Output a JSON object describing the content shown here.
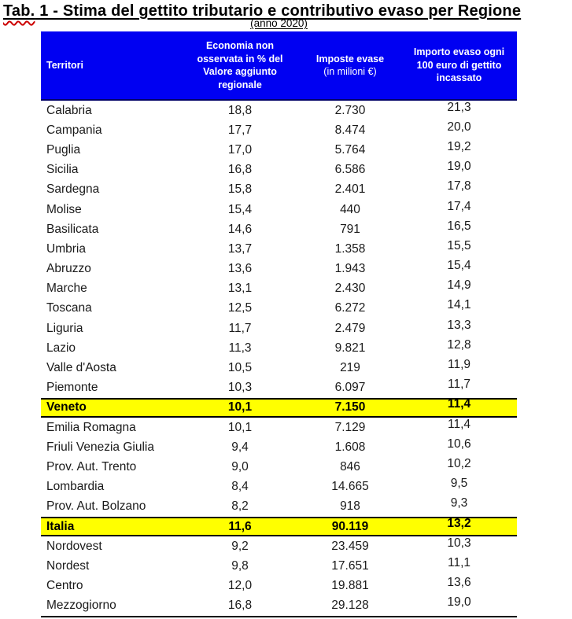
{
  "header": {
    "title_misspelled_word": "Tab.",
    "title_rest": " 1 - Stima del gettito tributario e contributivo evaso per Regione",
    "title_full": "Tab. 1 - Stima del gettito tributario e contributivo evaso per Regione",
    "subtitle": "(anno 2020)"
  },
  "colors": {
    "header_bg": "#0000F2",
    "header_bottom_edge": "#000066",
    "header_text": "#FFFFFF",
    "highlight_bg": "#FFFF00",
    "row_border": "#000000",
    "misspelling_underline": "#CC0000"
  },
  "chart_data": {
    "type": "table",
    "title": "Tab. 1 - Stima del gettito tributario e contributivo evaso per Regione",
    "subtitle": "(anno 2020)",
    "columns": [
      "Territori",
      "Economia non osservata in % del Valore aggiunto regionale",
      "Imposte evase (in milioni €)",
      "Importo evaso ogni 100 euro di gettito incassato"
    ],
    "column_headers": {
      "col1": "Territori",
      "col2": "Economia non osservata in % del Valore aggiunto regionale",
      "col3_line1": "Imposte evase",
      "col3_line2": "(in milioni €)",
      "col4": "Importo evaso ogni 100 euro di gettito incassato"
    },
    "rows": [
      {
        "territorio": "Calabria",
        "economia": "18,8",
        "imposte": "2.730",
        "importo": "21,3",
        "highlight": false
      },
      {
        "territorio": "Campania",
        "economia": "17,7",
        "imposte": "8.474",
        "importo": "20,0",
        "highlight": false
      },
      {
        "territorio": "Puglia",
        "economia": "17,0",
        "imposte": "5.764",
        "importo": "19,2",
        "highlight": false
      },
      {
        "territorio": "Sicilia",
        "economia": "16,8",
        "imposte": "6.586",
        "importo": "19,0",
        "highlight": false
      },
      {
        "territorio": "Sardegna",
        "economia": "15,8",
        "imposte": "2.401",
        "importo": "17,8",
        "highlight": false
      },
      {
        "territorio": "Molise",
        "economia": "15,4",
        "imposte": "440",
        "importo": "17,4",
        "highlight": false
      },
      {
        "territorio": "Basilicata",
        "economia": "14,6",
        "imposte": "791",
        "importo": "16,5",
        "highlight": false
      },
      {
        "territorio": "Umbria",
        "economia": "13,7",
        "imposte": "1.358",
        "importo": "15,5",
        "highlight": false
      },
      {
        "territorio": "Abruzzo",
        "economia": "13,6",
        "imposte": "1.943",
        "importo": "15,4",
        "highlight": false
      },
      {
        "territorio": "Marche",
        "economia": "13,1",
        "imposte": "2.430",
        "importo": "14,9",
        "highlight": false
      },
      {
        "territorio": "Toscana",
        "economia": "12,5",
        "imposte": "6.272",
        "importo": "14,1",
        "highlight": false
      },
      {
        "territorio": "Liguria",
        "economia": "11,7",
        "imposte": "2.479",
        "importo": "13,3",
        "highlight": false
      },
      {
        "territorio": "Lazio",
        "economia": "11,3",
        "imposte": "9.821",
        "importo": "12,8",
        "highlight": false
      },
      {
        "territorio": "Valle d'Aosta",
        "economia": "10,5",
        "imposte": "219",
        "importo": "11,9",
        "highlight": false
      },
      {
        "territorio": "Piemonte",
        "economia": "10,3",
        "imposte": "6.097",
        "importo": "11,7",
        "highlight": false
      },
      {
        "territorio": "Veneto",
        "economia": "10,1",
        "imposte": "7.150",
        "importo": "11,4",
        "highlight": true
      },
      {
        "territorio": "Emilia Romagna",
        "economia": "10,1",
        "imposte": "7.129",
        "importo": "11,4",
        "highlight": false
      },
      {
        "territorio": "Friuli Venezia Giulia",
        "economia": "9,4",
        "imposte": "1.608",
        "importo": "10,6",
        "highlight": false
      },
      {
        "territorio": "Prov. Aut. Trento",
        "economia": "9,0",
        "imposte": "846",
        "importo": "10,2",
        "highlight": false
      },
      {
        "territorio": "Lombardia",
        "economia": "8,4",
        "imposte": "14.665",
        "importo": "9,5",
        "highlight": false
      },
      {
        "territorio": "Prov. Aut. Bolzano",
        "economia": "8,2",
        "imposte": "918",
        "importo": "9,3",
        "highlight": false
      },
      {
        "territorio": "Italia",
        "economia": "11,6",
        "imposte": "90.119",
        "importo": "13,2",
        "highlight": true
      },
      {
        "territorio": "Nordovest",
        "economia": "9,2",
        "imposte": "23.459",
        "importo": "10,3",
        "highlight": false
      },
      {
        "territorio": "Nordest",
        "economia": "9,8",
        "imposte": "17.651",
        "importo": "11,1",
        "highlight": false
      },
      {
        "territorio": "Centro",
        "economia": "12,0",
        "imposte": "19.881",
        "importo": "13,6",
        "highlight": false
      },
      {
        "territorio": "Mezzogiorno",
        "economia": "16,8",
        "imposte": "29.128",
        "importo": "19,0",
        "highlight": false
      }
    ]
  }
}
